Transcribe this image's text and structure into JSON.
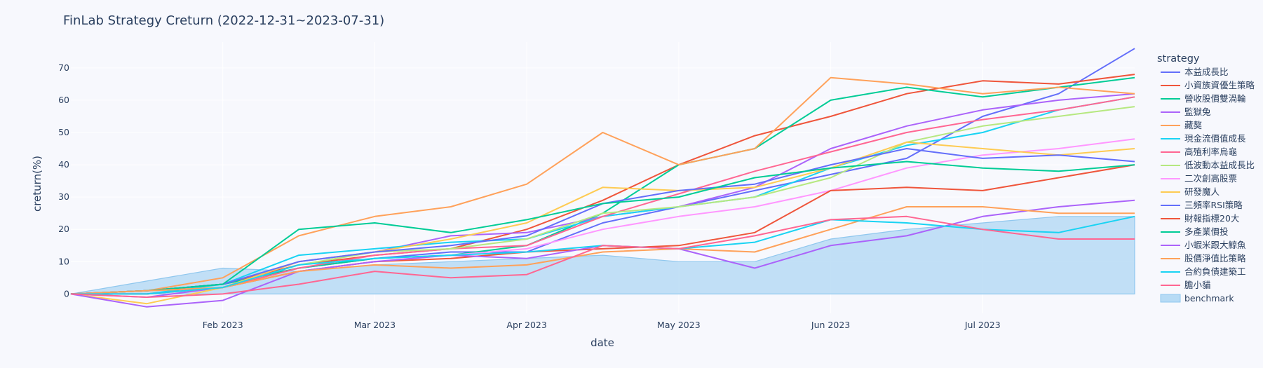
{
  "chart_data": {
    "type": "line",
    "title": "FinLab Strategy Creturn (2022-12-31~2023-07-31)",
    "xlabel": "date",
    "ylabel": "creturn(%)",
    "x_range": [
      0,
      7
    ],
    "x_ticks": [
      {
        "x": 1,
        "label": "Feb 2023"
      },
      {
        "x": 2,
        "label": "Mar 2023"
      },
      {
        "x": 3,
        "label": "Apr 2023"
      },
      {
        "x": 4,
        "label": "May 2023"
      },
      {
        "x": 5,
        "label": "Jun 2023"
      },
      {
        "x": 6,
        "label": "Jul 2023"
      }
    ],
    "ylim": [
      -6,
      78
    ],
    "y_ticks": [
      0,
      10,
      20,
      30,
      40,
      50,
      60,
      70
    ],
    "legend_title": "strategy",
    "legend_position": "right",
    "x": [
      0,
      0.5,
      1,
      1.5,
      2,
      2.5,
      3,
      3.5,
      4,
      4.5,
      5,
      5.5,
      6,
      6.5,
      7
    ],
    "series": [
      {
        "name": "本益成長比",
        "color": "#636efa",
        "values": [
          0,
          1,
          3,
          8,
          11,
          13,
          13,
          22,
          27,
          32,
          37,
          42,
          55,
          62,
          76
        ]
      },
      {
        "name": "小資族資優生策略",
        "color": "#EF553B",
        "values": [
          0,
          1,
          3,
          9,
          12,
          14,
          20,
          29,
          40,
          49,
          55,
          62,
          66,
          65,
          68
        ]
      },
      {
        "name": "營收股價雙渦輪",
        "color": "#00cc96",
        "values": [
          0,
          1,
          3,
          8,
          11,
          12,
          15,
          25,
          40,
          45,
          60,
          64,
          61,
          64,
          67
        ]
      },
      {
        "name": "監獄兔",
        "color": "#ab63fa",
        "values": [
          0,
          -1,
          2,
          10,
          13,
          18,
          19,
          24,
          27,
          33,
          45,
          52,
          57,
          60,
          62
        ]
      },
      {
        "name": "藏獒",
        "color": "#FFA15A",
        "values": [
          0,
          1,
          5,
          18,
          24,
          27,
          34,
          50,
          40,
          45,
          67,
          65,
          62,
          64,
          62
        ]
      },
      {
        "name": "現金流價值成長",
        "color": "#19d3f3",
        "values": [
          0,
          0,
          3,
          12,
          14,
          16,
          17,
          24,
          27,
          30,
          39,
          46,
          50,
          57,
          61
        ]
      },
      {
        "name": "高殖利率烏龜",
        "color": "#FF6692",
        "values": [
          0,
          1,
          2,
          8,
          12,
          14,
          15,
          24,
          31,
          38,
          44,
          50,
          54,
          57,
          61
        ]
      },
      {
        "name": "低波動本益成長比",
        "color": "#B6E880",
        "values": [
          0,
          1,
          2,
          9,
          13,
          14,
          17,
          25,
          27,
          30,
          36,
          47,
          52,
          55,
          58
        ]
      },
      {
        "name": "二次創高股票",
        "color": "#FF97FF",
        "values": [
          0,
          0,
          2,
          7,
          10,
          12,
          14,
          20,
          24,
          27,
          32,
          39,
          43,
          45,
          48
        ]
      },
      {
        "name": "研發魔人",
        "color": "#FECB52",
        "values": [
          0,
          -3,
          2,
          10,
          13,
          17,
          22,
          33,
          32,
          33,
          39,
          47,
          45,
          43,
          45
        ]
      },
      {
        "name": "三頻率RSI策略",
        "color": "#636efa",
        "values": [
          0,
          1,
          3,
          10,
          13,
          15,
          18,
          28,
          32,
          34,
          40,
          45,
          42,
          43,
          41
        ]
      },
      {
        "name": "財報指標20大",
        "color": "#EF553B",
        "values": [
          0,
          0,
          2,
          7,
          10,
          11,
          13,
          14,
          15,
          19,
          32,
          33,
          32,
          36,
          40
        ]
      },
      {
        "name": "多產業價投",
        "color": "#00cc96",
        "values": [
          0,
          1,
          3,
          20,
          22,
          19,
          23,
          28,
          30,
          36,
          39,
          41,
          39,
          38,
          40
        ]
      },
      {
        "name": "小蝦米跟大鯨魚",
        "color": "#ab63fa",
        "values": [
          0,
          -4,
          -2,
          7,
          10,
          12,
          11,
          15,
          14,
          8,
          15,
          18,
          24,
          27,
          29
        ]
      },
      {
        "name": "股價淨值比策略",
        "color": "#FFA15A",
        "values": [
          0,
          1,
          2,
          7,
          9,
          8,
          9,
          13,
          14,
          13,
          20,
          27,
          27,
          25,
          25
        ]
      },
      {
        "name": "合約負債建築工",
        "color": "#19d3f3",
        "values": [
          0,
          0,
          2,
          9,
          11,
          12,
          13,
          15,
          14,
          16,
          23,
          22,
          20,
          19,
          24
        ]
      },
      {
        "name": "膽小貓",
        "color": "#FF6692",
        "values": [
          0,
          -1,
          0,
          3,
          7,
          5,
          6,
          15,
          14,
          18,
          23,
          24,
          20,
          17,
          17
        ]
      }
    ],
    "benchmark": {
      "name": "benchmark",
      "color": "#b7dbf5",
      "line_color": "#8fc7ee",
      "type": "area",
      "values": [
        0,
        4,
        8,
        7,
        9,
        10,
        11,
        12,
        10,
        10,
        17,
        20,
        22,
        24,
        24
      ]
    }
  }
}
